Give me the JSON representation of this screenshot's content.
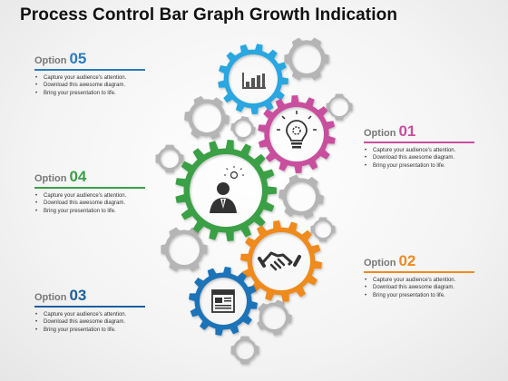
{
  "title": "Process Control Bar Graph Growth Indication",
  "options": [
    {
      "label": "Option",
      "number": "05",
      "color": "#2b7bbf",
      "bullets": [
        "Capture your audience’s attention.",
        "Download this awesome diagram.",
        "Bring your presentation to life."
      ]
    },
    {
      "label": "Option",
      "number": "04",
      "color": "#3aa045",
      "bullets": [
        "Capture your audience’s attention.",
        "Download this awesome diagram.",
        "Bring your presentation to life."
      ]
    },
    {
      "label": "Option",
      "number": "03",
      "color": "#1d5e9e",
      "bullets": [
        "Capture your audience’s attention.",
        "Download this awesome diagram.",
        "Bring your presentation to life."
      ]
    },
    {
      "label": "Option",
      "number": "01",
      "color": "#c84f9e",
      "bullets": [
        "Capture your audience’s attention.",
        "Download this awesome diagram.",
        "Bring your presentation to life."
      ]
    },
    {
      "label": "Option",
      "number": "02",
      "color": "#ef8a1f",
      "bullets": [
        "Capture your audience’s attention.",
        "Download this awesome diagram.",
        "Bring your presentation to life."
      ]
    }
  ],
  "gears": [
    {
      "color": "#2aa6e0",
      "icon": "bar-chart-icon"
    },
    {
      "color": "#c84f9e",
      "icon": "lightbulb-gear-icon"
    },
    {
      "color": "#3aa045",
      "icon": "businessman-idea-icon"
    },
    {
      "color": "#ef8a1f",
      "icon": "handshake-icon"
    },
    {
      "color": "#1d73b8",
      "icon": "web-page-icon"
    },
    {
      "color": "#b5b5b5",
      "icon": "gear-icon"
    }
  ]
}
